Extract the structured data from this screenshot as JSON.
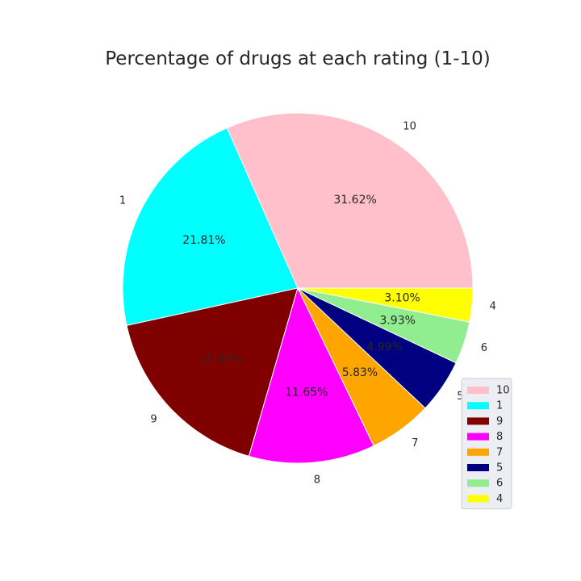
{
  "chart_data": {
    "type": "pie",
    "title": "Percentage of drugs at each rating (1-10)",
    "start_angle_deg": 0,
    "direction": "counterclockwise",
    "legend_position": "lower-right",
    "slices": [
      {
        "label": "10",
        "value": 31.62,
        "pct_label": "31.62%",
        "color": "#ffc0cb"
      },
      {
        "label": "1",
        "value": 21.81,
        "pct_label": "21.81%",
        "color": "#00ffff"
      },
      {
        "label": "9",
        "value": 17.07,
        "pct_label": "17.07%",
        "color": "#800000"
      },
      {
        "label": "8",
        "value": 11.65,
        "pct_label": "11.65%",
        "color": "#ff00ff"
      },
      {
        "label": "7",
        "value": 5.83,
        "pct_label": "5.83%",
        "color": "#ffa500"
      },
      {
        "label": "5",
        "value": 4.99,
        "pct_label": "4.99%",
        "color": "#000080"
      },
      {
        "label": "6",
        "value": 3.93,
        "pct_label": "3.93%",
        "color": "#90ee90"
      },
      {
        "label": "4",
        "value": 3.1,
        "pct_label": "3.10%",
        "color": "#ffff00"
      }
    ]
  }
}
